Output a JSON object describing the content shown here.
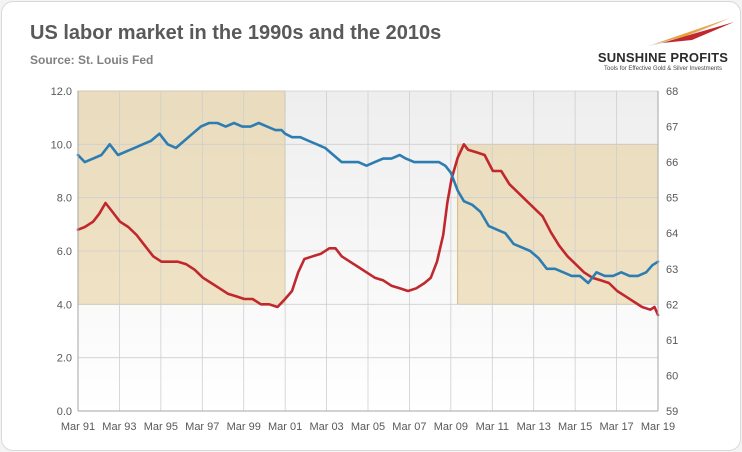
{
  "title": "US labor market in the 1990s and the 2010s",
  "subtitle": "Source: St. Louis Fed",
  "logo": {
    "name": "SUNSHINE PROFITS",
    "tagline": "Tools for Effective Gold & Silver Investments",
    "colors": [
      "#c0282e",
      "#e9a23b",
      "#d9d9d9"
    ]
  },
  "chart_data": {
    "type": "line",
    "title": "US labor market in the 1990s and the 2010s",
    "subtitle": "Source: St. Louis Fed",
    "xlabel": "",
    "ylabel": "",
    "xlim": [
      1991.17,
      2019.17
    ],
    "ylim": [
      0,
      12
    ],
    "y2lim": [
      59,
      68
    ],
    "grid": true,
    "legend": "none",
    "x_ticks": [
      "Mar 91",
      "Mar 93",
      "Mar 95",
      "Mar 97",
      "Mar 99",
      "Mar 01",
      "Mar 03",
      "Mar 05",
      "Mar 07",
      "Mar 09",
      "Mar 11",
      "Mar 13",
      "Mar 15",
      "Mar 17",
      "Mar 19"
    ],
    "x_tick_values": [
      1991.17,
      1993.17,
      1995.17,
      1997.17,
      1999.17,
      2001.17,
      2003.17,
      2005.17,
      2007.17,
      2009.17,
      2011.17,
      2013.17,
      2015.17,
      2017.17,
      2019.17
    ],
    "y_ticks": [
      "0.0",
      "2.0",
      "4.0",
      "6.0",
      "8.0",
      "10.0",
      "12.0"
    ],
    "y_tick_values": [
      0,
      2,
      4,
      6,
      8,
      10,
      12
    ],
    "y2_ticks": [
      "59",
      "60",
      "61",
      "62",
      "63",
      "64",
      "65",
      "66",
      "67",
      "68"
    ],
    "y2_tick_values": [
      59,
      60,
      61,
      62,
      63,
      64,
      65,
      66,
      67,
      68
    ],
    "shaded_regions": [
      {
        "x0": 1991.17,
        "x1": 2001.17,
        "y0": 4,
        "y1": 12,
        "color": "#e6c98e"
      },
      {
        "x0": 2009.5,
        "x1": 2019.17,
        "y0": 4,
        "y1": 10,
        "color": "#e6c98e"
      }
    ],
    "series": [
      {
        "axis": "left",
        "color": "#c0282e",
        "points": [
          [
            1991.17,
            6.8
          ],
          [
            1991.5,
            6.9
          ],
          [
            1991.9,
            7.1
          ],
          [
            1992.2,
            7.4
          ],
          [
            1992.5,
            7.8
          ],
          [
            1992.8,
            7.5
          ],
          [
            1993.2,
            7.1
          ],
          [
            1993.6,
            6.9
          ],
          [
            1994.0,
            6.6
          ],
          [
            1994.4,
            6.2
          ],
          [
            1994.8,
            5.8
          ],
          [
            1995.2,
            5.6
          ],
          [
            1995.6,
            5.6
          ],
          [
            1996.0,
            5.6
          ],
          [
            1996.4,
            5.5
          ],
          [
            1996.8,
            5.3
          ],
          [
            1997.2,
            5.0
          ],
          [
            1997.6,
            4.8
          ],
          [
            1998.0,
            4.6
          ],
          [
            1998.4,
            4.4
          ],
          [
            1998.8,
            4.3
          ],
          [
            1999.2,
            4.2
          ],
          [
            1999.6,
            4.2
          ],
          [
            2000.0,
            4.0
          ],
          [
            2000.4,
            4.0
          ],
          [
            2000.8,
            3.9
          ],
          [
            2001.17,
            4.2
          ],
          [
            2001.5,
            4.5
          ],
          [
            2001.8,
            5.2
          ],
          [
            2002.1,
            5.7
          ],
          [
            2002.5,
            5.8
          ],
          [
            2002.9,
            5.9
          ],
          [
            2003.3,
            6.1
          ],
          [
            2003.6,
            6.1
          ],
          [
            2003.9,
            5.8
          ],
          [
            2004.3,
            5.6
          ],
          [
            2004.7,
            5.4
          ],
          [
            2005.1,
            5.2
          ],
          [
            2005.5,
            5.0
          ],
          [
            2005.9,
            4.9
          ],
          [
            2006.3,
            4.7
          ],
          [
            2006.7,
            4.6
          ],
          [
            2007.1,
            4.5
          ],
          [
            2007.5,
            4.6
          ],
          [
            2007.9,
            4.8
          ],
          [
            2008.2,
            5.0
          ],
          [
            2008.5,
            5.6
          ],
          [
            2008.8,
            6.6
          ],
          [
            2009.0,
            7.8
          ],
          [
            2009.2,
            8.7
          ],
          [
            2009.5,
            9.5
          ],
          [
            2009.8,
            10.0
          ],
          [
            2010.0,
            9.8
          ],
          [
            2010.4,
            9.7
          ],
          [
            2010.8,
            9.6
          ],
          [
            2011.2,
            9.0
          ],
          [
            2011.6,
            9.0
          ],
          [
            2012.0,
            8.5
          ],
          [
            2012.4,
            8.2
          ],
          [
            2012.8,
            7.9
          ],
          [
            2013.2,
            7.6
          ],
          [
            2013.6,
            7.3
          ],
          [
            2014.0,
            6.7
          ],
          [
            2014.4,
            6.2
          ],
          [
            2014.8,
            5.8
          ],
          [
            2015.2,
            5.5
          ],
          [
            2015.6,
            5.2
          ],
          [
            2016.0,
            5.0
          ],
          [
            2016.4,
            4.9
          ],
          [
            2016.8,
            4.8
          ],
          [
            2017.2,
            4.5
          ],
          [
            2017.6,
            4.3
          ],
          [
            2018.0,
            4.1
          ],
          [
            2018.4,
            3.9
          ],
          [
            2018.8,
            3.8
          ],
          [
            2019.0,
            3.9
          ],
          [
            2019.17,
            3.6
          ]
        ]
      },
      {
        "axis": "right",
        "color": "#2e7db2",
        "points": [
          [
            1991.17,
            66.2
          ],
          [
            1991.5,
            66.0
          ],
          [
            1991.9,
            66.1
          ],
          [
            1992.3,
            66.2
          ],
          [
            1992.7,
            66.5
          ],
          [
            1993.1,
            66.2
          ],
          [
            1993.5,
            66.3
          ],
          [
            1993.9,
            66.4
          ],
          [
            1994.3,
            66.5
          ],
          [
            1994.7,
            66.6
          ],
          [
            1995.1,
            66.8
          ],
          [
            1995.5,
            66.5
          ],
          [
            1995.9,
            66.4
          ],
          [
            1996.3,
            66.6
          ],
          [
            1996.7,
            66.8
          ],
          [
            1997.1,
            67.0
          ],
          [
            1997.5,
            67.1
          ],
          [
            1997.9,
            67.1
          ],
          [
            1998.3,
            67.0
          ],
          [
            1998.7,
            67.1
          ],
          [
            1999.1,
            67.0
          ],
          [
            1999.5,
            67.0
          ],
          [
            1999.9,
            67.1
          ],
          [
            2000.3,
            67.0
          ],
          [
            2000.7,
            66.9
          ],
          [
            2001.0,
            66.9
          ],
          [
            2001.17,
            66.8
          ],
          [
            2001.5,
            66.7
          ],
          [
            2001.9,
            66.7
          ],
          [
            2002.3,
            66.6
          ],
          [
            2002.7,
            66.5
          ],
          [
            2003.1,
            66.4
          ],
          [
            2003.5,
            66.2
          ],
          [
            2003.9,
            66.0
          ],
          [
            2004.3,
            66.0
          ],
          [
            2004.7,
            66.0
          ],
          [
            2005.1,
            65.9
          ],
          [
            2005.5,
            66.0
          ],
          [
            2005.9,
            66.1
          ],
          [
            2006.3,
            66.1
          ],
          [
            2006.7,
            66.2
          ],
          [
            2007.0,
            66.1
          ],
          [
            2007.4,
            66.0
          ],
          [
            2007.8,
            66.0
          ],
          [
            2008.2,
            66.0
          ],
          [
            2008.6,
            66.0
          ],
          [
            2008.9,
            65.9
          ],
          [
            2009.17,
            65.7
          ],
          [
            2009.5,
            65.2
          ],
          [
            2009.8,
            64.9
          ],
          [
            2010.2,
            64.8
          ],
          [
            2010.6,
            64.6
          ],
          [
            2011.0,
            64.2
          ],
          [
            2011.4,
            64.1
          ],
          [
            2011.8,
            64.0
          ],
          [
            2012.2,
            63.7
          ],
          [
            2012.6,
            63.6
          ],
          [
            2013.0,
            63.5
          ],
          [
            2013.4,
            63.3
          ],
          [
            2013.8,
            63.0
          ],
          [
            2014.2,
            63.0
          ],
          [
            2014.6,
            62.9
          ],
          [
            2015.0,
            62.8
          ],
          [
            2015.4,
            62.8
          ],
          [
            2015.8,
            62.6
          ],
          [
            2016.2,
            62.9
          ],
          [
            2016.6,
            62.8
          ],
          [
            2017.0,
            62.8
          ],
          [
            2017.4,
            62.9
          ],
          [
            2017.8,
            62.8
          ],
          [
            2018.2,
            62.8
          ],
          [
            2018.6,
            62.9
          ],
          [
            2018.9,
            63.1
          ],
          [
            2019.17,
            63.2
          ]
        ]
      }
    ]
  }
}
